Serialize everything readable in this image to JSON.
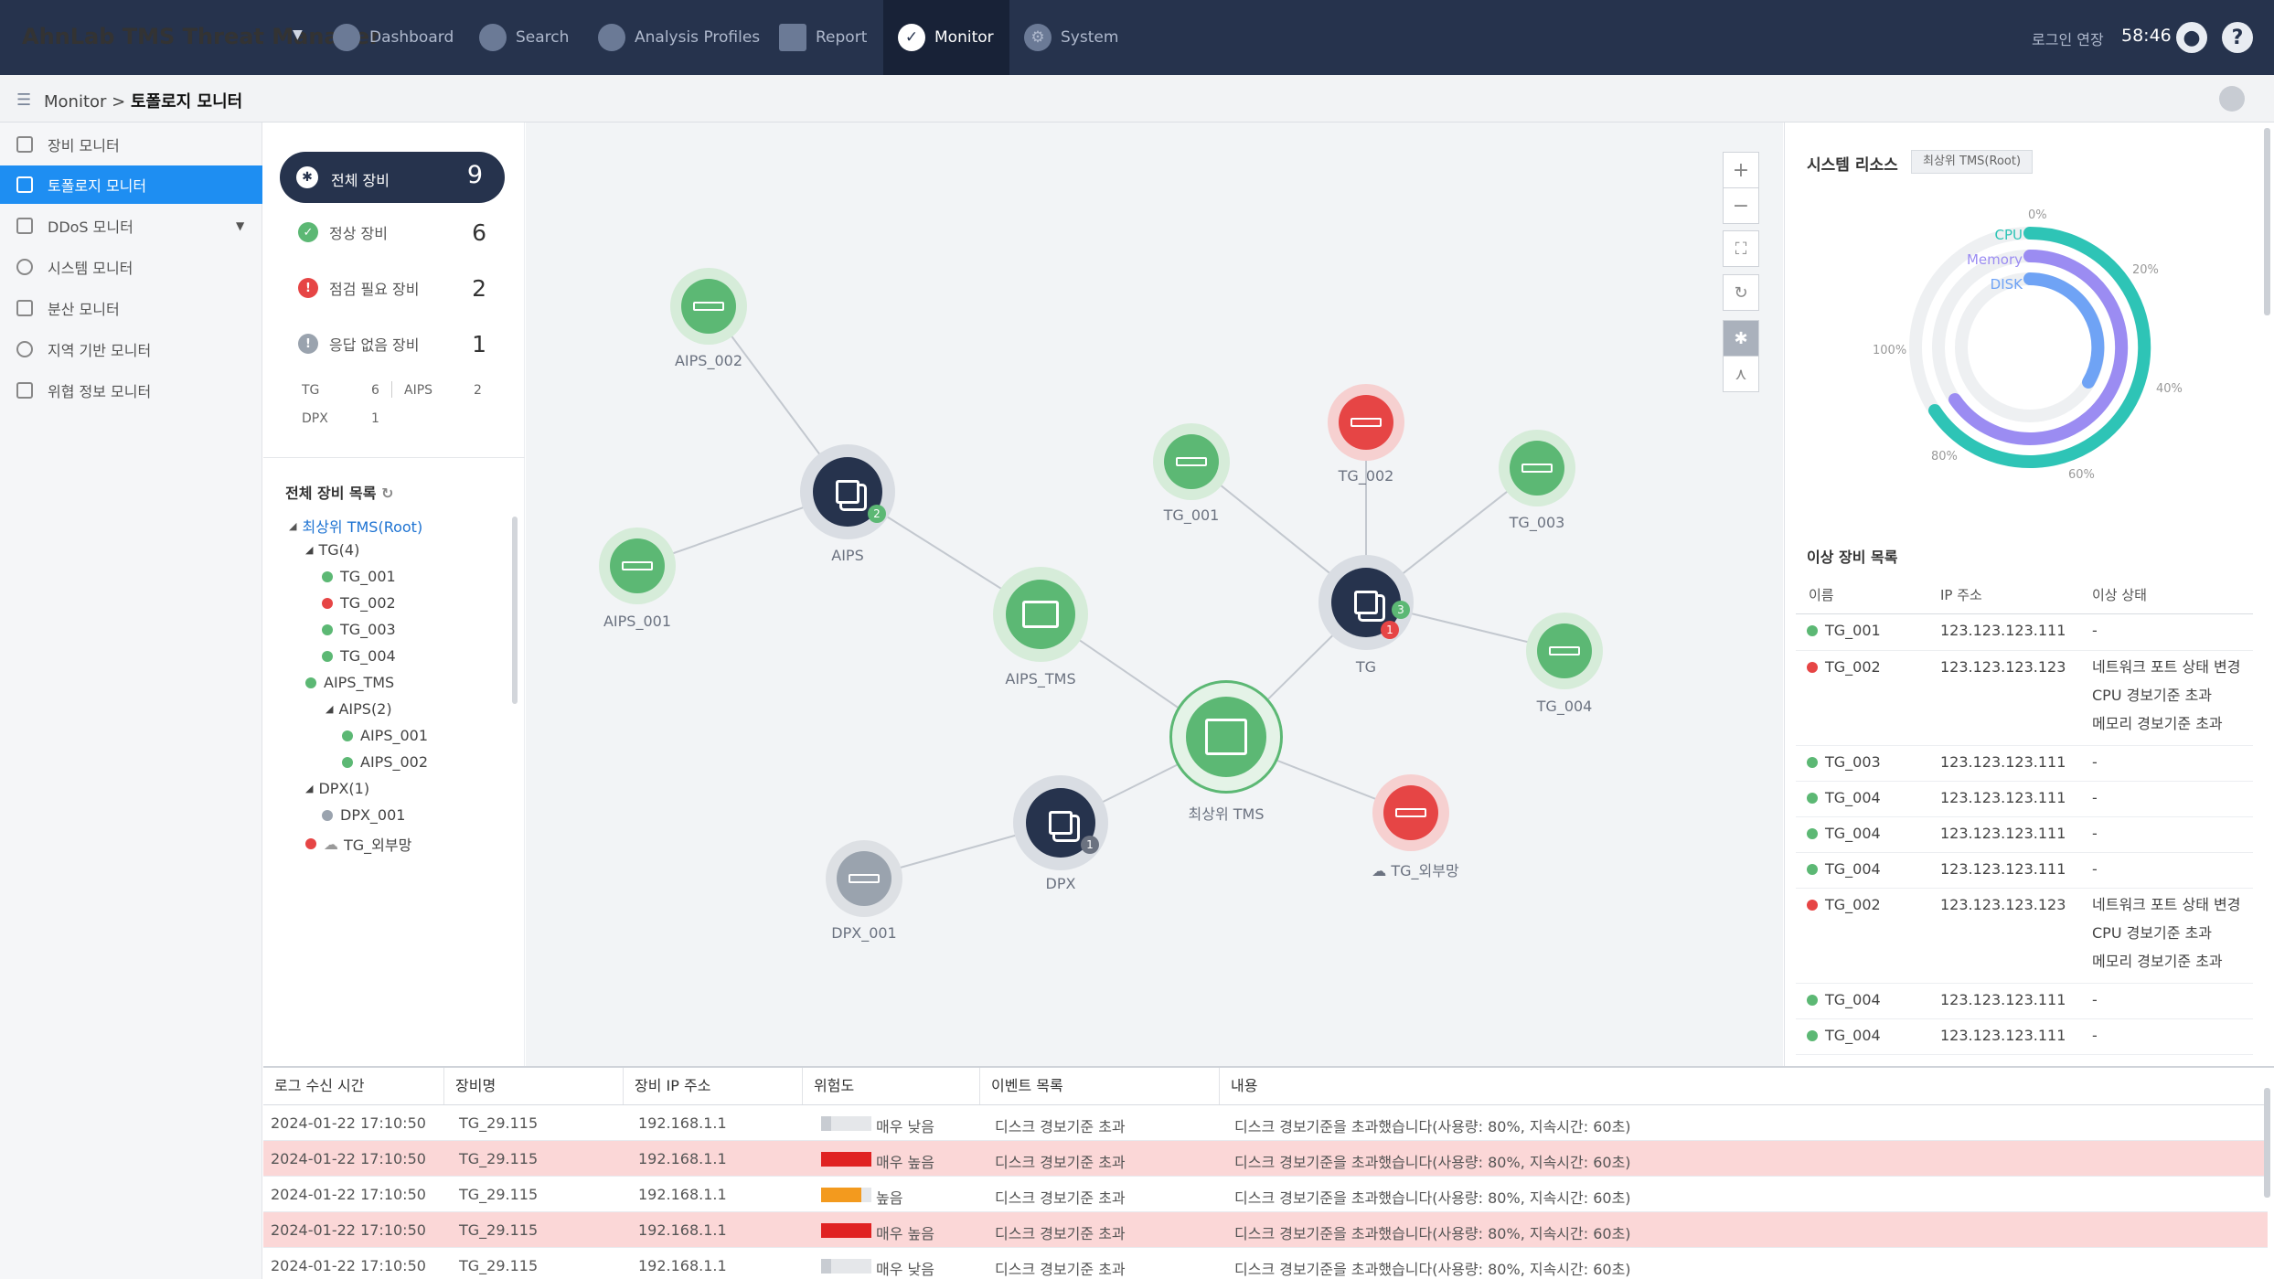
{
  "header": {
    "brand": "AhnLab TMS Threat Manager",
    "nav": [
      {
        "label": "Dashboard",
        "icon": "dashboard-icon"
      },
      {
        "label": "Search",
        "icon": "search-icon"
      },
      {
        "label": "Analysis Profiles",
        "icon": "pie-chart-icon"
      },
      {
        "label": "Report",
        "icon": "report-icon"
      },
      {
        "label": "Monitor",
        "icon": "monitor-icon"
      },
      {
        "label": "System",
        "icon": "gear-icon"
      }
    ],
    "active_nav": "Monitor",
    "login_extend_label": "로그인 연장",
    "timer": "58:46",
    "user_icon": "user-icon",
    "help_icon": "help-icon"
  },
  "breadcrumb": {
    "parent": "Monitor",
    "separator": ">",
    "current": "토폴로지 모니터"
  },
  "sidebar": {
    "items": [
      {
        "label": "장비 모니터",
        "icon": "device-monitor-icon"
      },
      {
        "label": "토폴로지 모니터",
        "icon": "topology-icon",
        "active": true
      },
      {
        "label": "DDoS 모니터",
        "icon": "ddos-icon",
        "has_submenu": true
      },
      {
        "label": "시스템 모니터",
        "icon": "system-monitor-icon"
      },
      {
        "label": "분산 모니터",
        "icon": "distributed-icon"
      },
      {
        "label": "지역 기반 모니터",
        "icon": "location-icon"
      },
      {
        "label": "위협 정보 모니터",
        "icon": "threat-info-icon"
      }
    ]
  },
  "device_summary": {
    "total": {
      "label": "전체 장비",
      "count": "9"
    },
    "normal": {
      "label": "정상 장비",
      "count": "6"
    },
    "failed": {
      "label": "점검 필요 장비",
      "count": "2"
    },
    "noresponse": {
      "label": "응답 없음 장비",
      "count": "1"
    },
    "types": [
      {
        "name": "TG",
        "count": "6"
      },
      {
        "name": "AIPS",
        "count": "2"
      },
      {
        "name": "DPX",
        "count": "1"
      }
    ]
  },
  "device_tree": {
    "title": "전체 장비 목록",
    "root": "최상위 TMS(Root)",
    "tg_group": "TG(4)",
    "tg_items": [
      "TG_001",
      "TG_002",
      "TG_003",
      "TG_004"
    ],
    "aips_tms": "AIPS_TMS",
    "aips_group": "AIPS(2)",
    "aips_items": [
      "AIPS_001",
      "AIPS_002"
    ],
    "dpx_group": "DPX(1)",
    "dpx_items": [
      "DPX_001"
    ],
    "external": "TG_외부망"
  },
  "topology": {
    "nodes": {
      "aips_002": "AIPS_002",
      "aips_001": "AIPS_001",
      "aips": "AIPS",
      "aips_tms": "AIPS_TMS",
      "root": "최상위 TMS",
      "dpx": "DPX",
      "dpx_001": "DPX_001",
      "tg": "TG",
      "tg_001": "TG_001",
      "tg_002": "TG_002",
      "tg_003": "TG_003",
      "tg_004": "TG_004",
      "tg_ext": "TG_외부망"
    },
    "badges": {
      "aips": "2",
      "tg_ok": "3",
      "tg_err": "1",
      "dpx": "1"
    },
    "colors": {
      "normal": "#5cb874",
      "error": "#e64545",
      "offline": "#9aa3ae",
      "group": "#26334d"
    }
  },
  "system_resource": {
    "title": "시스템 리소스",
    "target": "최상위 TMS(Root)",
    "series": [
      {
        "name": "CPU",
        "color": "#2ec4b6"
      },
      {
        "name": "Memory",
        "color": "#9b8cf2"
      },
      {
        "name": "DISK",
        "color": "#6fa3f5"
      }
    ],
    "ticks": [
      "0%",
      "20%",
      "40%",
      "60%",
      "80%",
      "100%"
    ]
  },
  "abnormal_devices": {
    "title": "이상 장비 목록",
    "columns": [
      "이름",
      "IP 주소",
      "이상 상태"
    ],
    "rows": [
      {
        "name": "TG_001",
        "ip": "123.123.123.111",
        "status": [
          "-"
        ],
        "state": "ok"
      },
      {
        "name": "TG_002",
        "ip": "123.123.123.123",
        "status": [
          "네트워크 포트 상태 변경",
          "CPU 경보기준 초과",
          "메모리 경보기준 초과"
        ],
        "state": "error"
      },
      {
        "name": "TG_003",
        "ip": "123.123.123.111",
        "status": [
          "-"
        ],
        "state": "ok"
      },
      {
        "name": "TG_004",
        "ip": "123.123.123.111",
        "status": [
          "-"
        ],
        "state": "ok"
      },
      {
        "name": "TG_004",
        "ip": "123.123.123.111",
        "status": [
          "-"
        ],
        "state": "ok"
      },
      {
        "name": "TG_004",
        "ip": "123.123.123.111",
        "status": [
          "-"
        ],
        "state": "ok"
      },
      {
        "name": "TG_002",
        "ip": "123.123.123.123",
        "status": [
          "네트워크 포트 상태 변경",
          "CPU 경보기준 초과",
          "메모리 경보기준 초과"
        ],
        "state": "error"
      },
      {
        "name": "TG_004",
        "ip": "123.123.123.111",
        "status": [
          "-"
        ],
        "state": "ok"
      },
      {
        "name": "TG_004",
        "ip": "123.123.123.111",
        "status": [
          "-"
        ],
        "state": "ok"
      }
    ]
  },
  "log_table": {
    "columns": [
      "로그 수신 시간",
      "장비명",
      "장비 IP 주소",
      "위험도",
      "이벤트 목록",
      "내용"
    ],
    "rows": [
      {
        "time": "2024-01-22 17:10:50",
        "device": "TG_29.115",
        "ip": "192.168.1.1",
        "risk": "매우 낮음",
        "risk_level": 0.2,
        "risk_color": "#c8ccd2",
        "event": "디스크 경보기준 초과",
        "content": "디스크 경보기준을 초과했습니다(사용량: 80%, 지속시간: 60초)",
        "highlight": false
      },
      {
        "time": "2024-01-22 17:10:50",
        "device": "TG_29.115",
        "ip": "192.168.1.1",
        "risk": "매우 높음",
        "risk_level": 1.0,
        "risk_color": "#e02222",
        "event": "디스크 경보기준 초과",
        "content": "디스크 경보기준을 초과했습니다(사용량: 80%, 지속시간: 60초)",
        "highlight": true
      },
      {
        "time": "2024-01-22 17:10:50",
        "device": "TG_29.115",
        "ip": "192.168.1.1",
        "risk": "높음",
        "risk_level": 0.8,
        "risk_color": "#f39a1e",
        "event": "디스크 경보기준 초과",
        "content": "디스크 경보기준을 초과했습니다(사용량: 80%, 지속시간: 60초)",
        "highlight": false
      },
      {
        "time": "2024-01-22 17:10:50",
        "device": "TG_29.115",
        "ip": "192.168.1.1",
        "risk": "매우 높음",
        "risk_level": 1.0,
        "risk_color": "#e02222",
        "event": "디스크 경보기준 초과",
        "content": "디스크 경보기준을 초과했습니다(사용량: 80%, 지속시간: 60초)",
        "highlight": true
      },
      {
        "time": "2024-01-22 17:10:50",
        "device": "TG_29.115",
        "ip": "192.168.1.1",
        "risk": "매우 낮음",
        "risk_level": 0.2,
        "risk_color": "#c8ccd2",
        "event": "디스크 경보기준 초과",
        "content": "디스크 경보기준을 초과했습니다(사용량: 80%, 지속시간: 60초)",
        "highlight": false
      }
    ]
  }
}
